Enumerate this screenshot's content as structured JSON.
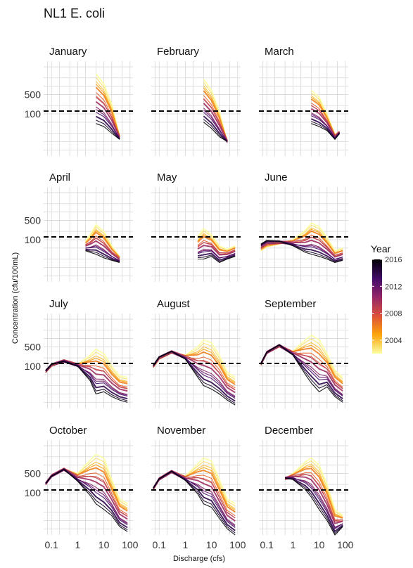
{
  "chart_data": {
    "type": "line",
    "title": "NL1 E. coli",
    "xlabel": "Discharge (cfs)",
    "ylabel": "Concentration (cfu/100mL)",
    "x_scale": "log",
    "y_scale": "log",
    "xlim": [
      0.05,
      130
    ],
    "ylim": [
      3,
      8000
    ],
    "x_ticks": [
      {
        "v": 0.1,
        "label": "0.1"
      },
      {
        "v": 1,
        "label": "1"
      },
      {
        "v": 10,
        "label": "10"
      },
      {
        "v": 100,
        "label": "100"
      }
    ],
    "y_ticks": [
      {
        "v": 100,
        "label": "100"
      },
      {
        "v": 500,
        "label": "500"
      }
    ],
    "reference_line": {
      "y": 126,
      "style": "dashed",
      "color": "#000000"
    },
    "grid": true,
    "legend": {
      "title": "Year",
      "position": "right",
      "range": [
        2002,
        2016
      ],
      "ticks": [
        {
          "v": 2016,
          "label": "2016"
        },
        {
          "v": 2012,
          "label": "2012"
        },
        {
          "v": 2008,
          "label": "2008"
        },
        {
          "v": 2004,
          "label": "2004"
        }
      ],
      "colors": [
        "#000004",
        "#420a68",
        "#932667",
        "#dd513a",
        "#fca50a",
        "#fcffa4"
      ]
    },
    "years": [
      2002,
      2003,
      2004,
      2005,
      2006,
      2007,
      2008,
      2009,
      2010,
      2011,
      2012,
      2013,
      2014,
      2015,
      2016
    ],
    "panels": [
      {
        "month": "January",
        "x": [
          5,
          10,
          20,
          40
        ],
        "first": [
          2800,
          1200,
          220,
          16
        ],
        "last": [
          45,
          35,
          20,
          12
        ]
      },
      {
        "month": "February",
        "x": [
          5,
          10,
          20,
          40
        ],
        "first": [
          1800,
          700,
          120,
          10
        ],
        "last": [
          50,
          30,
          15,
          10
        ]
      },
      {
        "month": "March",
        "x": [
          5,
          10,
          20,
          40,
          60
        ],
        "first": [
          700,
          400,
          100,
          18,
          22
        ],
        "last": [
          45,
          35,
          25,
          12,
          20
        ]
      },
      {
        "month": "April",
        "x": [
          2,
          3,
          5,
          10,
          20,
          40
        ],
        "first": [
          90,
          150,
          350,
          200,
          60,
          25
        ],
        "last": [
          40,
          35,
          30,
          22,
          18,
          15
        ]
      },
      {
        "month": "May",
        "x": [
          3,
          5,
          10,
          20,
          40,
          80
        ],
        "first": [
          130,
          250,
          150,
          60,
          45,
          60
        ],
        "last": [
          20,
          20,
          25,
          15,
          20,
          25
        ]
      },
      {
        "month": "June",
        "x": [
          0.06,
          0.1,
          0.3,
          1,
          3,
          5,
          10,
          20,
          40,
          80
        ],
        "first": [
          40,
          55,
          70,
          100,
          220,
          400,
          300,
          120,
          40,
          50
        ],
        "last": [
          70,
          95,
          90,
          60,
          35,
          30,
          25,
          20,
          15,
          18
        ]
      },
      {
        "month": "July",
        "x": [
          0.06,
          0.1,
          0.3,
          1,
          3,
          5,
          10,
          20,
          40,
          80
        ],
        "first": [
          60,
          100,
          160,
          120,
          250,
          420,
          280,
          100,
          45,
          40
        ],
        "last": [
          70,
          120,
          150,
          100,
          30,
          10,
          12,
          8,
          6,
          5
        ]
      },
      {
        "month": "August",
        "x": [
          0.06,
          0.1,
          0.3,
          1,
          3,
          5,
          10,
          20,
          40,
          80
        ],
        "first": [
          90,
          180,
          300,
          250,
          500,
          900,
          700,
          250,
          60,
          40
        ],
        "last": [
          110,
          220,
          350,
          180,
          40,
          20,
          15,
          10,
          6,
          4
        ]
      },
      {
        "month": "September",
        "x": [
          0.06,
          0.1,
          0.3,
          1,
          3,
          5,
          10,
          20,
          40,
          80
        ],
        "first": [
          110,
          300,
          500,
          350,
          900,
          1300,
          900,
          280,
          70,
          40
        ],
        "last": [
          130,
          320,
          600,
          250,
          50,
          25,
          12,
          18,
          8,
          5
        ]
      },
      {
        "month": "October",
        "x": [
          0.06,
          0.1,
          0.3,
          1,
          3,
          5,
          10,
          20,
          40,
          80
        ],
        "first": [
          200,
          400,
          700,
          500,
          1500,
          2400,
          1800,
          300,
          60,
          40
        ],
        "last": [
          220,
          400,
          700,
          260,
          80,
          40,
          25,
          15,
          6,
          4
        ]
      },
      {
        "month": "November",
        "x": [
          0.06,
          0.1,
          0.3,
          1,
          3,
          5,
          10,
          20,
          40,
          80
        ],
        "first": [
          130,
          300,
          550,
          400,
          1100,
          1800,
          1400,
          300,
          60,
          40
        ],
        "last": [
          150,
          320,
          600,
          280,
          90,
          40,
          30,
          12,
          5,
          3
        ]
      },
      {
        "month": "December",
        "x": [
          0.5,
          1,
          3,
          5,
          10,
          20,
          40,
          80
        ],
        "first": [
          300,
          500,
          1300,
          1800,
          1000,
          200,
          25,
          15
        ],
        "last": [
          350,
          300,
          130,
          70,
          25,
          10,
          3,
          6
        ]
      }
    ]
  }
}
